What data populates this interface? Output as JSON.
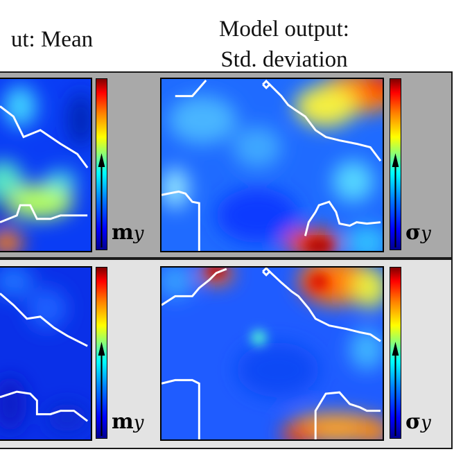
{
  "titles": {
    "mean": "ut: Mean",
    "std_line1": "Model output:",
    "std_line2": "Std. deviation"
  },
  "colorbars": {
    "mean_symbol": "m",
    "mean_subscript": "y",
    "std_symbol": "σ",
    "std_subscript": "y"
  },
  "colors": {
    "row1_band": "#a9a9a9",
    "row2_band": "#e3e3e3",
    "boundary_line": "#ffffff",
    "frame": "#000000"
  },
  "panels": [
    {
      "row": 1,
      "column": "mean",
      "content": "heatmap"
    },
    {
      "row": 1,
      "column": "std",
      "content": "heatmap"
    },
    {
      "row": 2,
      "column": "mean",
      "content": "heatmap"
    },
    {
      "row": 2,
      "column": "std",
      "content": "heatmap"
    }
  ]
}
